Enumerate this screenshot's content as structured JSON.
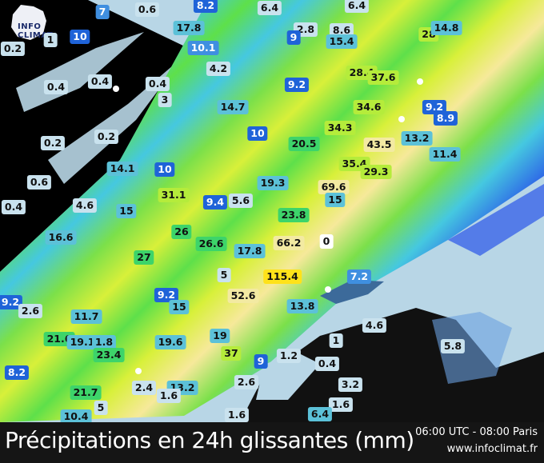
{
  "logo": {
    "text": "INFO CLIMAT"
  },
  "footer": {
    "title": "Précipitations en 24h glissantes (mm)",
    "time": "06:00 UTC - 08:00 Paris",
    "url": "www.infoclimat.fr"
  },
  "colors": {
    "background": "#000000",
    "no_rain": "#b8d6e6",
    "light": "#2a56e8",
    "moderate": "#45c8e0",
    "heavy": "#5ee04a",
    "very_heavy": "#d8f03a",
    "extreme": "#f6e99a"
  },
  "stations": [
    {
      "v": "7",
      "k": "m"
    },
    {
      "v": "0.6",
      "k": "l"
    },
    {
      "v": "8.2",
      "k": "b"
    },
    {
      "v": "6.4",
      "k": "l"
    },
    {
      "v": "10",
      "k": "b"
    },
    {
      "v": "17.8",
      "k": "c"
    },
    {
      "v": "1",
      "k": "l"
    },
    {
      "v": "0.2",
      "k": "l"
    },
    {
      "v": "10.1",
      "k": "m"
    },
    {
      "v": "4.2",
      "k": "l"
    },
    {
      "v": "0.4",
      "k": "l"
    },
    {
      "v": "0.4",
      "k": "l"
    },
    {
      "v": "0.4",
      "k": "l"
    },
    {
      "v": "3",
      "k": "l"
    },
    {
      "v": "14.7",
      "k": "c"
    },
    {
      "v": "10",
      "k": "b"
    },
    {
      "v": "0.2",
      "k": "l"
    },
    {
      "v": "0.2",
      "k": "l"
    },
    {
      "v": "14.1",
      "k": "c"
    },
    {
      "v": "10",
      "k": "b"
    },
    {
      "v": "0.6",
      "k": "l"
    },
    {
      "v": "31.1",
      "k": "y"
    },
    {
      "v": "9.4",
      "k": "b"
    },
    {
      "v": "5.6",
      "k": "l"
    },
    {
      "v": "4.6",
      "k": "l"
    },
    {
      "v": "15",
      "k": "c"
    },
    {
      "v": "0.4",
      "k": "l"
    },
    {
      "v": "19.3",
      "k": "c"
    },
    {
      "v": "26",
      "k": "g"
    },
    {
      "v": "16.6",
      "k": "c"
    },
    {
      "v": "6.4",
      "k": "l"
    },
    {
      "v": "2.8",
      "k": "l"
    },
    {
      "v": "9",
      "k": "b"
    },
    {
      "v": "8.6",
      "k": "l"
    },
    {
      "v": "15.4",
      "k": "c"
    },
    {
      "v": "28",
      "k": "y"
    },
    {
      "v": "14.8",
      "k": "c"
    },
    {
      "v": "28.4",
      "k": "y"
    },
    {
      "v": "37.6",
      "k": "y"
    },
    {
      "v": "9.2",
      "k": "b"
    },
    {
      "v": "34.6",
      "k": "y"
    },
    {
      "v": "9.2",
      "k": "b"
    },
    {
      "v": "8.9",
      "k": "b"
    },
    {
      "v": "34.3",
      "k": "y"
    },
    {
      "v": "20.5",
      "k": "g"
    },
    {
      "v": "43.5",
      "k": "p"
    },
    {
      "v": "13.2",
      "k": "c"
    },
    {
      "v": "11.4",
      "k": "c"
    },
    {
      "v": "35.4",
      "k": "y"
    },
    {
      "v": "29.3",
      "k": "y"
    },
    {
      "v": "69.6",
      "k": "p"
    },
    {
      "v": "15",
      "k": "c"
    },
    {
      "v": "23.8",
      "k": "g"
    },
    {
      "v": "27",
      "k": "g"
    },
    {
      "v": "26.6",
      "k": "g"
    },
    {
      "v": "17.8",
      "k": "c"
    },
    {
      "v": "5",
      "k": "l"
    },
    {
      "v": "52.6",
      "k": "p"
    },
    {
      "v": "9.2",
      "k": "b"
    },
    {
      "v": "15",
      "k": "c"
    },
    {
      "v": "9.2",
      "k": "b"
    },
    {
      "v": "2.6",
      "k": "l"
    },
    {
      "v": "11.7",
      "k": "c"
    },
    {
      "v": "21.6",
      "k": "g"
    },
    {
      "v": "19.1",
      "k": "c"
    },
    {
      "v": "1.8",
      "k": "c"
    },
    {
      "v": "23.4",
      "k": "g"
    },
    {
      "v": "19.6",
      "k": "c"
    },
    {
      "v": "19",
      "k": "c"
    },
    {
      "v": "37",
      "k": "y"
    },
    {
      "v": "9",
      "k": "b"
    },
    {
      "v": "8.2",
      "k": "b"
    },
    {
      "v": "2.6",
      "k": "l"
    },
    {
      "v": "2.4",
      "k": "l"
    },
    {
      "v": "13.2",
      "k": "c"
    },
    {
      "v": "21.7",
      "k": "g"
    },
    {
      "v": "1.6",
      "k": "l"
    },
    {
      "v": "5",
      "k": "l"
    },
    {
      "v": "10.4",
      "k": "c"
    },
    {
      "v": "1.6",
      "k": "l"
    },
    {
      "v": "66.2",
      "k": "p"
    },
    {
      "v": "0",
      "k": "w"
    },
    {
      "v": "7.2",
      "k": "m"
    },
    {
      "v": "115.4",
      "k": "s"
    },
    {
      "v": "13.8",
      "k": "c"
    },
    {
      "v": "4.6",
      "k": "l"
    },
    {
      "v": "1",
      "k": "l"
    },
    {
      "v": "5.8",
      "k": "l"
    },
    {
      "v": "1.2",
      "k": "l"
    },
    {
      "v": "0.4",
      "k": "l"
    },
    {
      "v": "3.2",
      "k": "l"
    },
    {
      "v": "1.6",
      "k": "l"
    },
    {
      "v": "6.4",
      "k": "c"
    }
  ]
}
